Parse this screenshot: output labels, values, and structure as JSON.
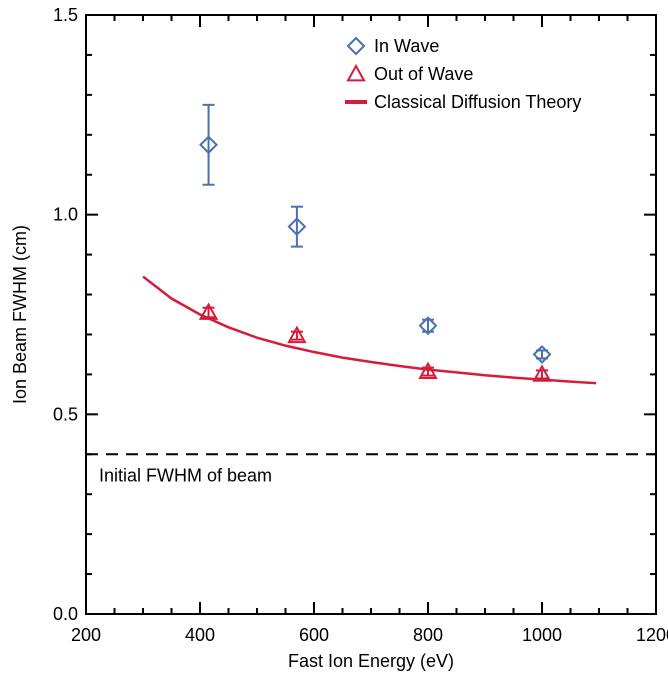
{
  "chart_data": {
    "type": "scatter",
    "xlabel": "Fast Ion Energy (eV)",
    "ylabel": "Ion Beam FWHM (cm)",
    "xlim": [
      200,
      1200
    ],
    "ylim": [
      0.0,
      1.5
    ],
    "x_ticks": [
      200,
      400,
      600,
      800,
      1000,
      1200
    ],
    "x_tick_labels": [
      "200",
      "400",
      "600",
      "800",
      "1000",
      "1200"
    ],
    "y_ticks": [
      0.0,
      0.5,
      1.0,
      1.5
    ],
    "y_tick_labels": [
      "0.0",
      "0.5",
      "1.0",
      "1.5"
    ],
    "grid": false,
    "legend_position": "top-right",
    "series": [
      {
        "name": "In Wave",
        "marker": "diamond",
        "color": "#4a6fb5",
        "x": [
          415,
          570,
          800,
          1000
        ],
        "y": [
          1.175,
          0.97,
          0.722,
          0.65
        ],
        "err": [
          0.1,
          0.05,
          0.015,
          0.01
        ]
      },
      {
        "name": "Out of Wave",
        "marker": "triangle",
        "color": "#d81b3c",
        "x": [
          415,
          570,
          800,
          1000
        ],
        "y": [
          0.755,
          0.697,
          0.607,
          0.6
        ],
        "err": [
          0.012,
          0.01,
          0.01,
          0.01
        ]
      },
      {
        "name": "Classical Diffusion Theory",
        "marker": "line",
        "color": "#d81b3c",
        "x": [
          300,
          350,
          400,
          450,
          500,
          550,
          600,
          650,
          700,
          750,
          800,
          850,
          900,
          950,
          1000,
          1050,
          1095
        ],
        "y": [
          0.845,
          0.79,
          0.75,
          0.718,
          0.692,
          0.672,
          0.656,
          0.642,
          0.631,
          0.621,
          0.612,
          0.605,
          0.598,
          0.592,
          0.587,
          0.582,
          0.578
        ]
      }
    ],
    "reference_line": {
      "y": 0.4,
      "style": "dashed",
      "label": "Initial FWHM of beam"
    }
  }
}
